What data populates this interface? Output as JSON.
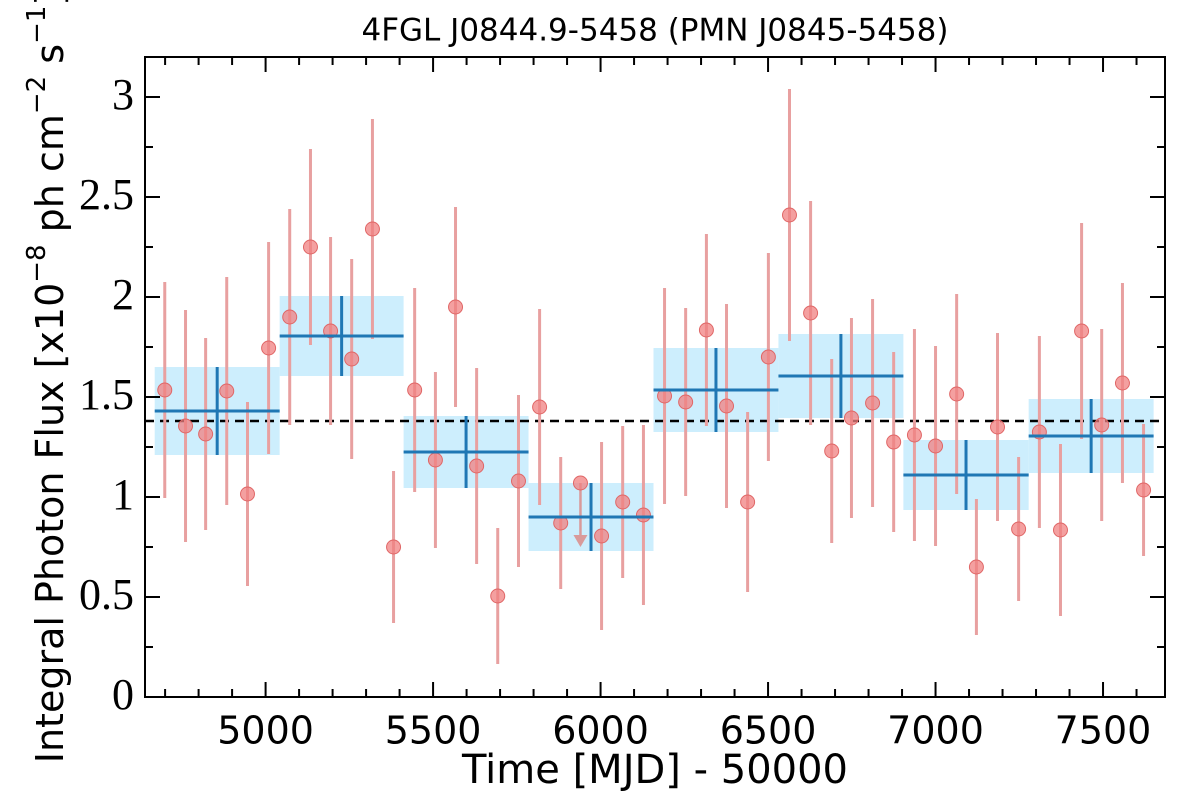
{
  "chart_data": {
    "type": "errorbar",
    "title": "4FGL J0844.9-5458 (PMN J0845-5458)",
    "xlabel": "Time [MJD] - 50000",
    "ylabel": [
      "Integral Photon Flux [x10",
      "−8",
      " ph cm",
      "−2",
      " s",
      "−1",
      "]"
    ],
    "xlim": [
      4640,
      7685
    ],
    "ylim": [
      0,
      3.2
    ],
    "xticks": [
      5000,
      5500,
      6000,
      6500,
      7000,
      7500
    ],
    "yticks": [
      0,
      0.5,
      1,
      1.5,
      2,
      2.5,
      3
    ],
    "xminorticks": [
      4700,
      4800,
      4900,
      5100,
      5200,
      5300,
      5400,
      5600,
      5700,
      5800,
      5900,
      6100,
      6200,
      6300,
      6400,
      6600,
      6700,
      6800,
      6900,
      7100,
      7200,
      7300,
      7400,
      7600
    ],
    "yminorticks": [
      0.25,
      0.75,
      1.25,
      1.75,
      2.25,
      2.75
    ],
    "mean": 1.38,
    "points": {
      "color": "#f08080",
      "error_color": "#e8a0a0",
      "x": [
        4699,
        4761,
        4821,
        4884,
        4946,
        5009,
        5072,
        5134,
        5194,
        5257,
        5319,
        5382,
        5445,
        5507,
        5567,
        5630,
        5693,
        5755,
        5818,
        5881,
        6003,
        6066,
        6128,
        6191,
        6254,
        6316,
        6376,
        6439,
        6501,
        6564,
        6627,
        6690,
        6749,
        6812,
        6875,
        6937,
        7000,
        7063,
        7122,
        7185,
        7248,
        7310,
        7373,
        7436,
        7496,
        7558,
        7621
      ],
      "values": [
        1.535,
        1.355,
        1.315,
        1.53,
        1.015,
        1.745,
        1.9,
        2.25,
        1.83,
        1.69,
        2.34,
        0.75,
        1.535,
        1.185,
        1.95,
        1.155,
        0.505,
        1.08,
        1.45,
        0.87,
        0.805,
        0.975,
        0.91,
        1.505,
        1.475,
        1.835,
        1.455,
        0.975,
        1.7,
        2.41,
        1.92,
        1.23,
        1.395,
        1.47,
        1.275,
        1.31,
        1.255,
        1.515,
        0.65,
        1.35,
        0.84,
        1.325,
        0.835,
        1.83,
        1.36,
        1.57,
        1.035
      ],
      "errors": [
        0.54,
        0.58,
        0.48,
        0.57,
        0.46,
        0.53,
        0.54,
        0.49,
        0.47,
        0.5,
        0.55,
        0.38,
        0.51,
        0.44,
        0.5,
        0.49,
        0.34,
        0.43,
        0.49,
        0.33,
        0.47,
        0.38,
        0.45,
        0.54,
        0.47,
        0.48,
        0.51,
        0.45,
        0.52,
        0.63,
        0.56,
        0.46,
        0.5,
        0.52,
        0.45,
        0.53,
        0.5,
        0.5,
        0.34,
        0.47,
        0.36,
        0.48,
        0.43,
        0.54,
        0.48,
        0.5,
        0.33
      ]
    },
    "upper_limit": {
      "x": 5940,
      "value": 1.07,
      "color": "#d99a9a"
    },
    "binned": {
      "color": "#1f77b4",
      "box_color": "#cdeefd",
      "x_start": [
        4669,
        5042,
        5412,
        5785,
        6158,
        6531,
        6904,
        7278
      ],
      "x_end": [
        5042,
        5412,
        5785,
        6158,
        6531,
        6904,
        7278,
        7651
      ],
      "values": [
        1.43,
        1.805,
        1.225,
        0.9,
        1.535,
        1.605,
        1.11,
        1.305
      ],
      "errors": [
        0.22,
        0.2,
        0.18,
        0.17,
        0.21,
        0.21,
        0.175,
        0.185
      ]
    }
  }
}
